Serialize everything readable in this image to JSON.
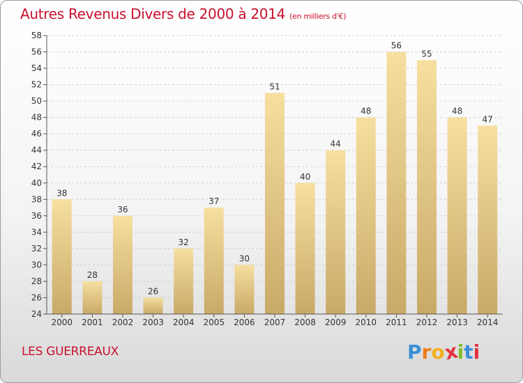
{
  "chart_data": {
    "type": "bar",
    "title": "Autres Revenus Divers de 2000 à 2014",
    "subtitle": "(en milliers d'€)",
    "categories": [
      "2000",
      "2001",
      "2002",
      "2003",
      "2004",
      "2005",
      "2006",
      "2007",
      "2008",
      "2009",
      "2010",
      "2011",
      "2012",
      "2013",
      "2014"
    ],
    "values": [
      38,
      28,
      36,
      26,
      32,
      37,
      30,
      51,
      40,
      44,
      48,
      56,
      55,
      48,
      47
    ],
    "data_labels": [
      "38",
      "28",
      "36",
      "26",
      "32",
      "37",
      "30",
      "51",
      "40",
      "44",
      "48",
      "56",
      "55",
      "48",
      "47"
    ],
    "ylim": [
      24,
      58
    ],
    "yticks": [
      24,
      26,
      28,
      30,
      32,
      34,
      36,
      38,
      40,
      42,
      44,
      46,
      48,
      50,
      52,
      54,
      56,
      58
    ],
    "ytick_labels": [
      "24",
      "26",
      "28",
      "30",
      "32",
      "34",
      "36",
      "38",
      "40",
      "42",
      "44",
      "46",
      "48",
      "50",
      "52",
      "54",
      "56",
      "58"
    ],
    "grid": true,
    "colors": {
      "bar_light": "#f6dfa0",
      "bar_dark": "#c9a968",
      "grid": "#cfcfcf",
      "text": "#333333"
    }
  },
  "footer": {
    "commune": "LES GUERREAUX"
  },
  "logo": {
    "letters": [
      "P",
      "r",
      "o",
      "x",
      "i",
      "t",
      "i"
    ],
    "colors": [
      "#3b8fd6",
      "#f07d1a",
      "#f2b01e",
      "#e4313f",
      "#7fbf2a",
      "#3b8fd6",
      "#e4313f"
    ]
  },
  "theme": {
    "title_color": "#c8102e"
  }
}
